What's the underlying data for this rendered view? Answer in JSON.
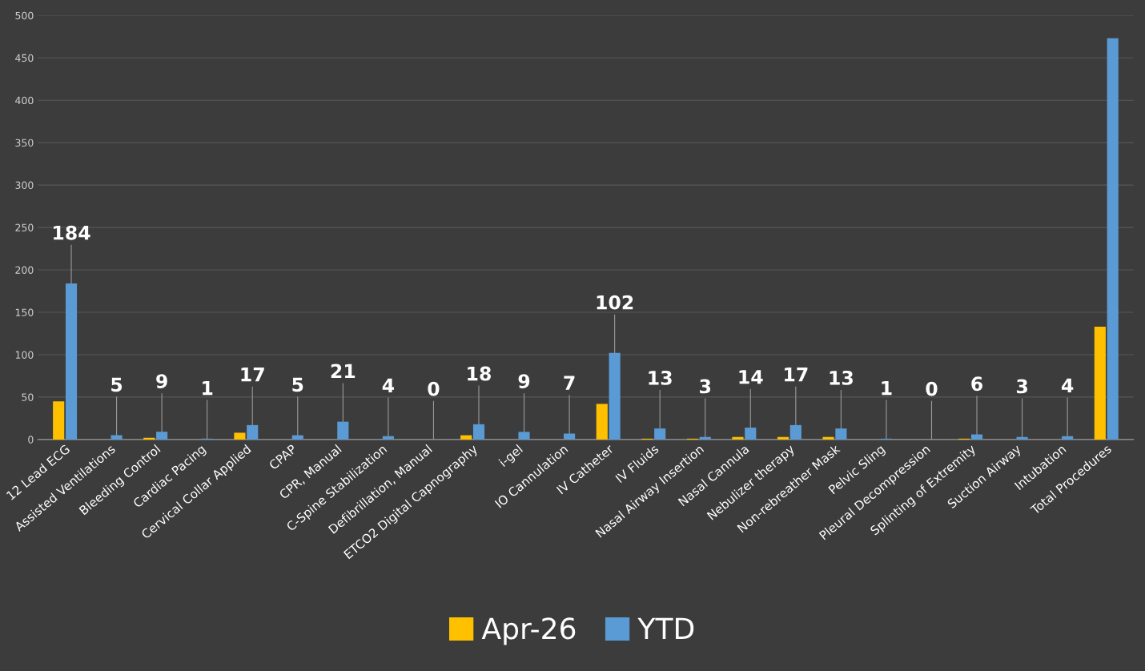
{
  "chart_data": {
    "type": "bar",
    "categories": [
      "12 Lead ECG",
      "Assisted Ventilations",
      "Bleeding Control",
      "Cardiac Pacing",
      "Cervical Collar Applied",
      "CPAP",
      "CPR, Manual",
      "C-Spine Stabilization",
      "Defibrillation, Manual",
      "ETCO2 Digital Capnography",
      "i-gel",
      "IO Cannulation",
      "IV Catheter",
      "IV Fluids",
      "Nasal Airway Insertion",
      "Nasal Cannula",
      "Nebulizer therapy",
      "Non-rebreather Mask",
      "Pelvic Sling",
      "Pleural Decompression",
      "Splinting of Extremity",
      "Suction Airway",
      "Intubation",
      "Total Procedures"
    ],
    "series": [
      {
        "name": "Apr-26",
        "color": "#ffc000",
        "values": [
          45,
          0,
          2,
          0,
          8,
          0,
          0,
          0,
          0,
          5,
          0,
          0,
          42,
          1,
          1,
          3,
          3,
          3,
          0,
          0,
          1,
          0,
          0,
          133
        ]
      },
      {
        "name": "YTD",
        "color": "#5b9bd5",
        "values": [
          184,
          5,
          9,
          1,
          17,
          5,
          21,
          4,
          0,
          18,
          9,
          7,
          102,
          13,
          3,
          14,
          17,
          13,
          1,
          0,
          6,
          3,
          4,
          473
        ],
        "value_labels": [
          "184",
          "5",
          "9",
          "1",
          "17",
          "5",
          "21",
          "4",
          "0",
          "18",
          "9",
          "7",
          "102",
          "13",
          "3",
          "14",
          "17",
          "13",
          "1",
          "0",
          "6",
          "3",
          "4",
          null
        ]
      }
    ],
    "ylim": [
      0,
      500
    ],
    "yticks": [
      0,
      50,
      100,
      150,
      200,
      250,
      300,
      350,
      400,
      450,
      500
    ],
    "grid": "y",
    "legend": "bottom"
  }
}
